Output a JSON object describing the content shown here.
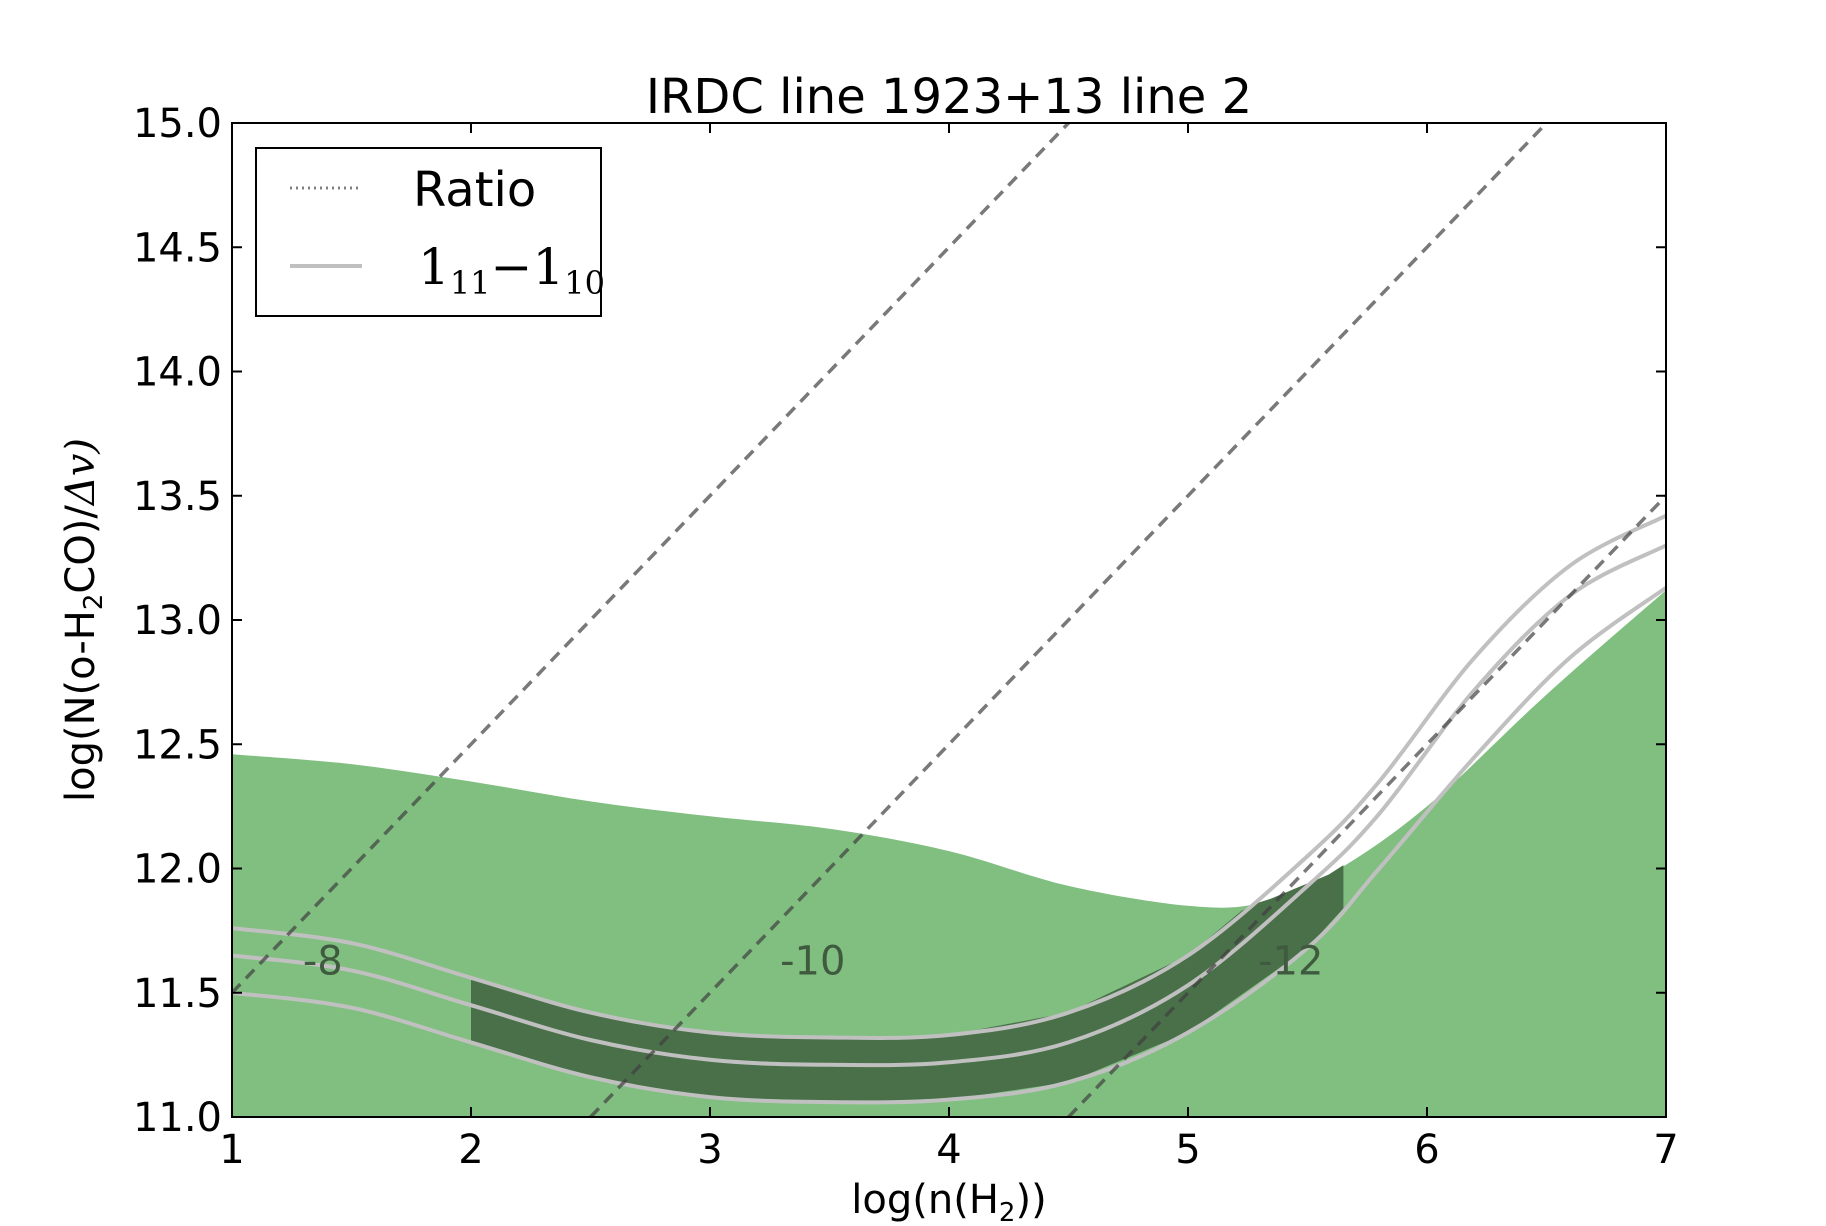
{
  "chart_data": {
    "type": "area",
    "title": "IRDC line 1923+13 line 2",
    "xlabel": {
      "main": "log(n(H",
      "sub": "2",
      "end": "))"
    },
    "ylabel": {
      "main": "log(N(o-H",
      "sub": "2",
      "mid": "CO)/",
      "end": "Δv)"
    },
    "xlim": [
      1,
      7
    ],
    "ylim": [
      11.0,
      15.0
    ],
    "xticks": [
      "1",
      "2",
      "3",
      "4",
      "5",
      "6",
      "7"
    ],
    "yticks": [
      "11.0",
      "11.5",
      "12.0",
      "12.5",
      "13.0",
      "13.5",
      "14.0",
      "14.5",
      "15.0"
    ],
    "grid": false,
    "legend": {
      "placement": "top-left",
      "entries": [
        {
          "label": "Ratio",
          "style": "dotted",
          "color": "#808080"
        },
        {
          "label_base": "1",
          "label_sub1": "11",
          "label_dash": "−",
          "label_base2": "1",
          "label_sub2": "10",
          "style": "solid",
          "color": "#c0c0c0"
        }
      ]
    },
    "colors": {
      "fill_region": "#80bf80",
      "overlap_region": "#4a704a",
      "contour_line": "#c0c0c0",
      "ratio_line": "#404040",
      "ratio_text": "#3f5a3f"
    },
    "green_region_upper": {
      "x": [
        1.0,
        1.5,
        2.0,
        2.5,
        3.0,
        3.5,
        4.0,
        4.5,
        5.0,
        5.3,
        5.6,
        6.0,
        6.5,
        7.0
      ],
      "y": [
        12.46,
        12.42,
        12.35,
        12.27,
        12.21,
        12.16,
        12.07,
        11.93,
        11.85,
        11.86,
        11.98,
        12.25,
        12.7,
        13.12
      ]
    },
    "contours_1_11_1_10": [
      {
        "x": [
          1.0,
          1.5,
          2.0,
          2.5,
          3.0,
          3.5,
          4.0,
          4.5,
          5.0,
          5.5,
          5.8,
          6.2,
          6.6,
          7.0
        ],
        "y": [
          11.76,
          11.7,
          11.56,
          11.42,
          11.34,
          11.32,
          11.33,
          11.42,
          11.65,
          12.05,
          12.35,
          12.85,
          13.22,
          13.42
        ]
      },
      {
        "x": [
          1.0,
          1.5,
          2.0,
          2.5,
          3.0,
          3.5,
          4.0,
          4.5,
          5.0,
          5.5,
          5.8,
          6.2,
          6.6,
          7.0
        ],
        "y": [
          11.65,
          11.59,
          11.45,
          11.31,
          11.23,
          11.21,
          11.22,
          11.3,
          11.53,
          11.93,
          12.22,
          12.72,
          13.1,
          13.3
        ]
      },
      {
        "x": [
          1.0,
          1.5,
          2.0,
          2.5,
          3.0,
          3.5,
          4.0,
          4.5,
          5.0,
          5.5,
          5.8,
          6.2,
          6.6,
          7.0
        ],
        "y": [
          11.5,
          11.44,
          11.3,
          11.16,
          11.08,
          11.06,
          11.07,
          11.14,
          11.34,
          11.68,
          12.0,
          12.45,
          12.85,
          13.13
        ]
      }
    ],
    "overlap_region_x_range": [
      2.0,
      5.65
    ],
    "ratio_lines": [
      {
        "label": "-8",
        "x": [
          1.0,
          4.5
        ],
        "y": [
          11.5,
          15.0
        ],
        "label_x": 1.38,
        "label_y": 11.63
      },
      {
        "label": "-10",
        "x": [
          2.5,
          6.5
        ],
        "y": [
          11.0,
          15.0
        ],
        "label_x": 3.43,
        "label_y": 11.63
      },
      {
        "label": "-12",
        "x": [
          4.5,
          7.0
        ],
        "y": [
          11.0,
          13.5
        ],
        "label_x": 5.43,
        "label_y": 11.63
      }
    ]
  }
}
